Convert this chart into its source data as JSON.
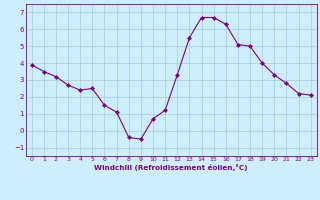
{
  "x": [
    0,
    1,
    2,
    3,
    4,
    5,
    6,
    7,
    8,
    9,
    10,
    11,
    12,
    13,
    14,
    15,
    16,
    17,
    18,
    19,
    20,
    21,
    22,
    23
  ],
  "y": [
    3.9,
    3.5,
    3.2,
    2.7,
    2.4,
    2.5,
    1.5,
    1.1,
    -0.4,
    -0.5,
    0.7,
    1.2,
    3.3,
    5.5,
    6.7,
    6.7,
    6.3,
    5.1,
    5.0,
    4.0,
    3.3,
    2.8,
    2.2,
    2.1
  ],
  "line_color": "#800080",
  "marker": "D",
  "marker_size": 2.0,
  "bg_color": "#cceeff",
  "grid_color": "#aacccc",
  "xlabel": "Windchill (Refroidissement éolien,°C)",
  "xlim": [
    -0.5,
    23.5
  ],
  "ylim": [
    -1.5,
    7.5
  ],
  "yticks": [
    -1,
    0,
    1,
    2,
    3,
    4,
    5,
    6,
    7
  ],
  "xticks": [
    0,
    1,
    2,
    3,
    4,
    5,
    6,
    7,
    8,
    9,
    10,
    11,
    12,
    13,
    14,
    15,
    16,
    17,
    18,
    19,
    20,
    21,
    22,
    23
  ],
  "spine_color": "#800080",
  "tick_color": "#800080",
  "label_color": "#800080"
}
